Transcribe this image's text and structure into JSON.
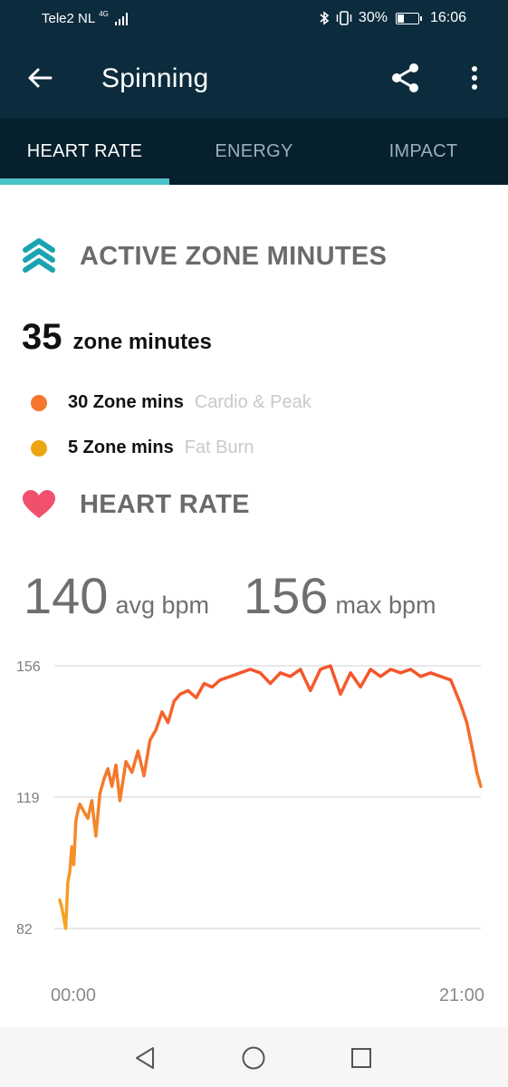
{
  "status_bar": {
    "carrier": "Tele2 NL",
    "network_type": "4G",
    "battery_percent_text": "30%",
    "battery_level": 0.3,
    "time": "16:06"
  },
  "app_bar": {
    "title": "Spinning",
    "back_icon": "arrow-left-icon",
    "share_icon": "share-icon",
    "more_icon": "more-vert-icon"
  },
  "tabs": [
    {
      "label": "HEART RATE",
      "active": true
    },
    {
      "label": "ENERGY",
      "active": false
    },
    {
      "label": "IMPACT",
      "active": false
    }
  ],
  "azm": {
    "heading": "ACTIVE ZONE MINUTES",
    "icon": "active-zone-chevrons-icon",
    "total": "35",
    "unit": "zone minutes",
    "rows": [
      {
        "mins": "30 Zone mins",
        "zone": "Cardio & Peak",
        "color": "#f4772c"
      },
      {
        "mins": "5 Zone mins",
        "zone": "Fat Burn",
        "color": "#eda611"
      }
    ]
  },
  "heart_rate": {
    "heading": "HEART RATE",
    "icon": "heart-icon",
    "avg_value": "140",
    "avg_label": "avg bpm",
    "max_value": "156",
    "max_label": "max bpm"
  },
  "chart_data": {
    "type": "line",
    "x_tick_labels": [
      "00:00",
      "21:00"
    ],
    "y_tick_labels": [
      "156",
      "119",
      "82"
    ],
    "ylim": [
      82,
      156
    ],
    "xlim": [
      0,
      21
    ],
    "grid": true,
    "colors": {
      "low": "#f6a623",
      "high": "#f4532c"
    },
    "series": [
      {
        "x": [
          0,
          0.1,
          0.2,
          0.3,
          0.4,
          0.5,
          0.6,
          0.7,
          0.8,
          0.9,
          1.0,
          1.2,
          1.4,
          1.6,
          1.8,
          2.0,
          2.2,
          2.4,
          2.6,
          2.8,
          3.0,
          3.3,
          3.6,
          3.9,
          4.2,
          4.5,
          4.8,
          5.1,
          5.4,
          5.7,
          6.0,
          6.4,
          6.8,
          7.2,
          7.6,
          8.0,
          8.5,
          9.0,
          9.5,
          10.0,
          10.5,
          11.0,
          11.5,
          12.0,
          12.5,
          13.0,
          13.5,
          14.0,
          14.5,
          15.0,
          15.5,
          16.0,
          16.5,
          17.0,
          17.5,
          18.0,
          18.5,
          19.0,
          19.5,
          20.0,
          20.3,
          20.6,
          20.8,
          21.0
        ],
        "y": [
          90,
          88,
          85,
          82,
          95,
          98,
          105,
          100,
          112,
          115,
          117,
          115,
          113,
          118,
          108,
          120,
          124,
          127,
          122,
          128,
          118,
          129,
          126,
          132,
          125,
          135,
          138,
          143,
          140,
          146,
          148,
          149,
          147,
          151,
          150,
          152,
          153,
          154,
          155,
          154,
          151,
          154,
          153,
          155,
          149,
          155,
          156,
          148,
          154,
          150,
          155,
          153,
          155,
          154,
          155,
          153,
          154,
          153,
          152,
          145,
          140,
          132,
          126,
          122
        ]
      }
    ]
  },
  "nav_bar": {
    "back_icon": "nav-back-icon",
    "home_icon": "nav-home-icon",
    "recents_icon": "nav-recents-icon"
  }
}
